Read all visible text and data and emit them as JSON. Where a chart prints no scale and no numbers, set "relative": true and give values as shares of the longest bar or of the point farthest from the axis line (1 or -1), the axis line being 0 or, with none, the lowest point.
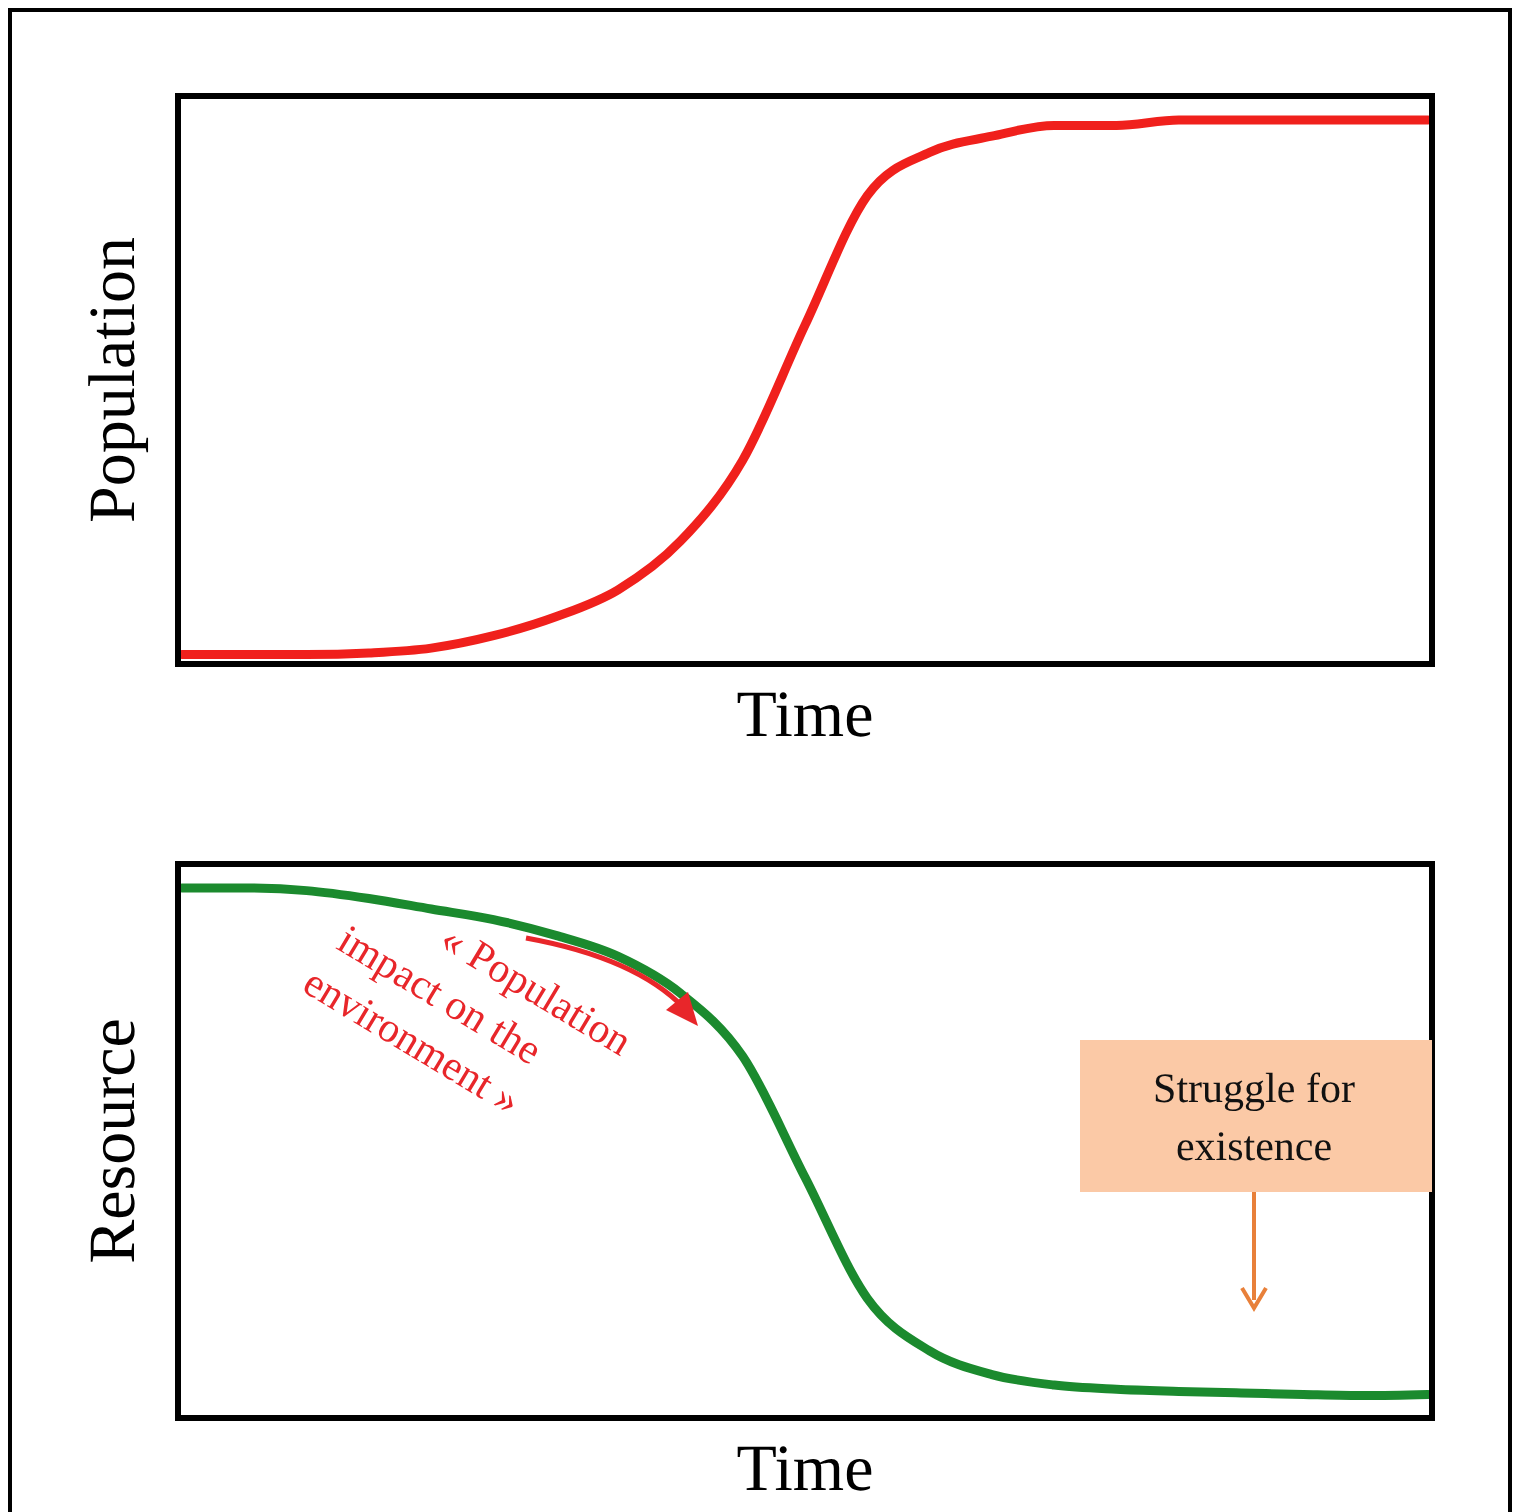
{
  "chart_data": [
    {
      "type": "line",
      "relative": true,
      "xlabel": "Time",
      "ylabel": "Population",
      "line_style": "solid",
      "categories": [
        null,
        null,
        null,
        null,
        null,
        null,
        null,
        null,
        null,
        null,
        null,
        null,
        null,
        null,
        null,
        null,
        null,
        null,
        null,
        null,
        null
      ],
      "series": [
        {
          "color": "#f0201c",
          "values": [
            0.01,
            0.01,
            0.01,
            0.013,
            0.022,
            0.045,
            0.08,
            0.13,
            0.22,
            0.37,
            0.62,
            0.86,
            0.94,
            0.97,
            0.99,
            0.99,
            1.0,
            1.0,
            1.0,
            1.0,
            1.0
          ]
        }
      ]
    },
    {
      "type": "line",
      "relative": true,
      "xlabel": "Time",
      "ylabel": "Resource",
      "line_style": "solid",
      "categories": [
        null,
        null,
        null,
        null,
        null,
        null,
        null,
        null,
        null,
        null,
        null,
        null,
        null,
        null,
        null,
        null,
        null,
        null,
        null,
        null,
        null
      ],
      "series": [
        {
          "color": "#1b8a2e",
          "values": [
            1.0,
            1.0,
            0.995,
            0.98,
            0.96,
            0.94,
            0.91,
            0.87,
            0.8,
            0.68,
            0.45,
            0.22,
            0.12,
            0.075,
            0.055,
            0.047,
            0.043,
            0.04,
            0.037,
            0.035,
            0.037
          ]
        }
      ],
      "annotations": [
        "« Population impact on the environment »",
        "Struggle for existence"
      ]
    }
  ]
}
